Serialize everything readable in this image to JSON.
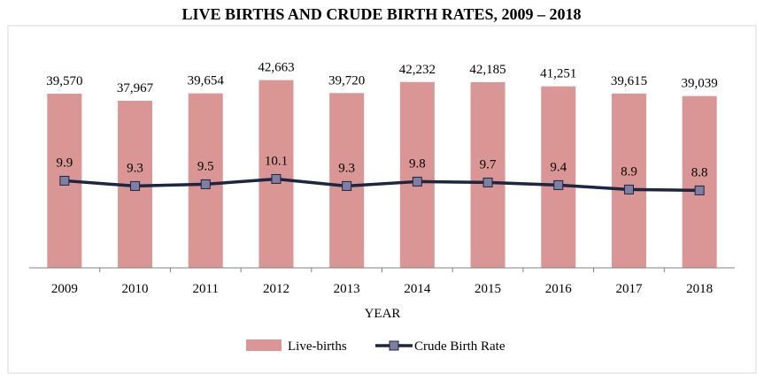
{
  "chart_data": {
    "type": "bar",
    "title": "LIVE BIRTHS AND CRUDE BIRTH RATES, 2009 – 2018",
    "xlabel": "YEAR",
    "ylabel": "",
    "categories": [
      "2009",
      "2010",
      "2011",
      "2012",
      "2013",
      "2014",
      "2015",
      "2016",
      "2017",
      "2018"
    ],
    "series": [
      {
        "name": "Live-births",
        "type": "bar",
        "values": [
          39570,
          37967,
          39654,
          42663,
          39720,
          42232,
          42185,
          41251,
          39615,
          39039
        ],
        "labels": [
          "39,570",
          "37,967",
          "39,654",
          "42,663",
          "39,720",
          "42,232",
          "42,185",
          "41,251",
          "39,615",
          "39,039"
        ],
        "color": "#d99694"
      },
      {
        "name": "Crude Birth Rate",
        "type": "line",
        "values": [
          9.9,
          9.3,
          9.5,
          10.1,
          9.3,
          9.8,
          9.7,
          9.4,
          8.9,
          8.8
        ],
        "labels": [
          "9.9",
          "9.3",
          "9.5",
          "10.1",
          "9.3",
          "9.8",
          "9.7",
          "9.4",
          "8.9",
          "8.8"
        ],
        "color": "#1c2541",
        "marker_color": "#7f7fa3"
      }
    ],
    "ylim_bars": [
      0,
      45000
    ],
    "ylim_line": [
      0,
      22.5
    ],
    "grid": false,
    "legend": "bottom"
  }
}
